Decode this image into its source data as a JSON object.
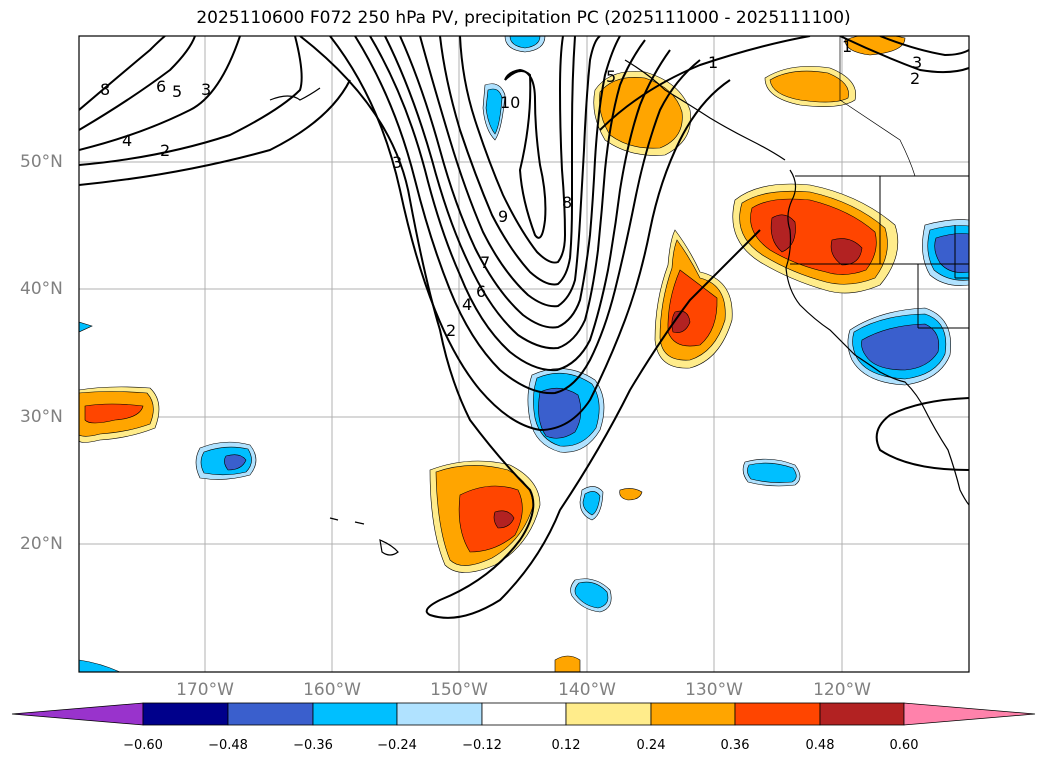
{
  "title": "2025110600 F072 250 hPa PV, precipitation PC (2025111000 - 2025111100)",
  "lat_labels": [
    "50°N",
    "40°N",
    "30°N",
    "20°N"
  ],
  "lon_labels": [
    "170°W",
    "160°W",
    "150°W",
    "140°W",
    "130°W",
    "120°W"
  ],
  "pv_contour_labels": [
    "10",
    "9",
    "8",
    "7",
    "6",
    "5",
    "4",
    "3",
    "2",
    "1",
    "8",
    "6",
    "5",
    "3",
    "4",
    "2",
    "1",
    "3",
    "2"
  ],
  "colorbar": {
    "ticks": [
      "−0.60",
      "−0.48",
      "−0.36",
      "−0.24",
      "−0.12",
      "0.12",
      "0.24",
      "0.36",
      "0.48",
      "0.60"
    ],
    "colors": [
      "#9933cc",
      "#00008b",
      "#3a5fcd",
      "#00bfff",
      "#b0e2ff",
      "#ffffff",
      "#ffec8b",
      "#ffa500",
      "#ff4500",
      "#b22222",
      "#ff82ab"
    ]
  }
}
